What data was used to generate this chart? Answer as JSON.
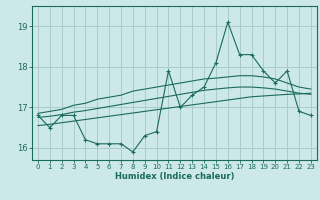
{
  "title": "",
  "xlabel": "Humidex (Indice chaleur)",
  "background_color": "#cce8e8",
  "grid_color": "#aacccc",
  "line_color": "#1a6b5a",
  "xlim": [
    -0.5,
    23.5
  ],
  "ylim": [
    15.7,
    19.5
  ],
  "yticks": [
    16,
    17,
    18,
    19
  ],
  "xticks": [
    0,
    1,
    2,
    3,
    4,
    5,
    6,
    7,
    8,
    9,
    10,
    11,
    12,
    13,
    14,
    15,
    16,
    17,
    18,
    19,
    20,
    21,
    22,
    23
  ],
  "hours": [
    0,
    1,
    2,
    3,
    4,
    5,
    6,
    7,
    8,
    9,
    10,
    11,
    12,
    13,
    14,
    15,
    16,
    17,
    18,
    19,
    20,
    21,
    22,
    23
  ],
  "main_data": [
    16.8,
    16.5,
    16.8,
    16.8,
    16.2,
    16.1,
    16.1,
    16.1,
    15.9,
    16.3,
    16.4,
    17.9,
    17.0,
    17.3,
    17.5,
    18.1,
    19.1,
    18.3,
    18.3,
    17.9,
    17.6,
    17.9,
    16.9,
    16.8
  ],
  "upper_line": [
    16.85,
    16.9,
    16.95,
    17.05,
    17.1,
    17.2,
    17.25,
    17.3,
    17.4,
    17.45,
    17.5,
    17.55,
    17.6,
    17.65,
    17.7,
    17.72,
    17.75,
    17.78,
    17.78,
    17.75,
    17.7,
    17.6,
    17.5,
    17.45
  ],
  "middle_line": [
    16.75,
    16.78,
    16.82,
    16.88,
    16.92,
    16.97,
    17.02,
    17.07,
    17.12,
    17.17,
    17.22,
    17.27,
    17.32,
    17.37,
    17.42,
    17.45,
    17.48,
    17.5,
    17.5,
    17.48,
    17.45,
    17.4,
    17.35,
    17.32
  ],
  "lower_line": [
    16.55,
    16.58,
    16.62,
    16.66,
    16.7,
    16.74,
    16.78,
    16.82,
    16.86,
    16.9,
    16.94,
    16.98,
    17.02,
    17.06,
    17.1,
    17.14,
    17.18,
    17.22,
    17.26,
    17.28,
    17.3,
    17.32,
    17.33,
    17.35
  ]
}
